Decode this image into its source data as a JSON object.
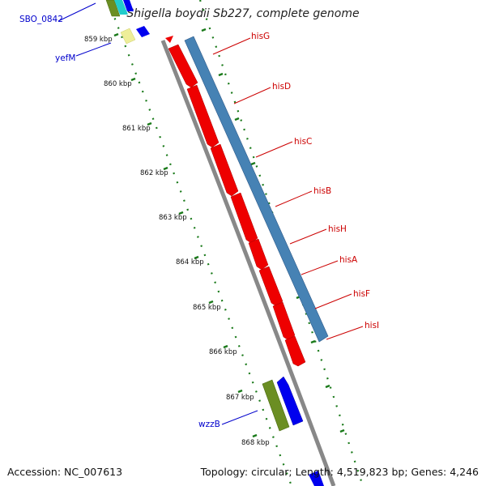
{
  "title": "Shigella boydii Sb227, complete genome",
  "accession_text": "Accession: NC_007613",
  "summary_text": "Topology: circular; Length: 4,519,823 bp; Genes: 4,246",
  "tick_labels": [
    "859 kbp",
    "860 kbp",
    "861 kbp",
    "862 kbp",
    "863 kbp",
    "864 kbp",
    "865 kbp",
    "866 kbp",
    "867 kbp",
    "868 kbp"
  ],
  "genes_red": [
    {
      "name": "hisG"
    },
    {
      "name": "hisD"
    },
    {
      "name": "hisC"
    },
    {
      "name": "hisB"
    },
    {
      "name": "hisH"
    },
    {
      "name": "hisA"
    },
    {
      "name": "hisF"
    },
    {
      "name": "hisI"
    }
  ],
  "genes_blue_labels": [
    {
      "name": "SBO_0842"
    },
    {
      "name": "yefM"
    },
    {
      "name": "wzzB"
    }
  ],
  "colors": {
    "cds_red": "#ee0000",
    "operon_blue": "#4682b4",
    "backbone": "#888888",
    "tick_green": "#1a7a1a",
    "label_red": "#cc0000",
    "label_blue": "#0000cc"
  }
}
